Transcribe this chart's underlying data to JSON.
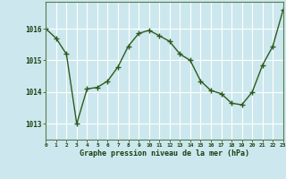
{
  "x": [
    0,
    1,
    2,
    3,
    4,
    5,
    6,
    7,
    8,
    9,
    10,
    11,
    12,
    13,
    14,
    15,
    16,
    17,
    18,
    19,
    20,
    21,
    22,
    23
  ],
  "y": [
    1016.0,
    1015.7,
    1015.2,
    1013.0,
    1014.1,
    1014.15,
    1014.35,
    1014.8,
    1015.45,
    1015.85,
    1015.95,
    1015.78,
    1015.6,
    1015.2,
    1015.0,
    1014.35,
    1014.05,
    1013.95,
    1013.65,
    1013.6,
    1014.0,
    1014.85,
    1015.45,
    1016.6
  ],
  "ylim": [
    1012.5,
    1016.85
  ],
  "yticks": [
    1013,
    1014,
    1015,
    1016
  ],
  "xticks": [
    0,
    1,
    2,
    3,
    4,
    5,
    6,
    7,
    8,
    9,
    10,
    11,
    12,
    13,
    14,
    15,
    16,
    17,
    18,
    19,
    20,
    21,
    22,
    23
  ],
  "line_color": "#2d5a1b",
  "marker": "+",
  "marker_color": "#2d5a1b",
  "bg_color": "#cce8ee",
  "plot_bg_color": "#cce8ee",
  "grid_color": "#ffffff",
  "xlabel": "Graphe pression niveau de la mer (hPa)",
  "xlabel_color": "#1a4010",
  "tick_color": "#1a4010",
  "axis_color": "#5a7a4a",
  "figsize": [
    3.2,
    2.0
  ],
  "dpi": 100
}
